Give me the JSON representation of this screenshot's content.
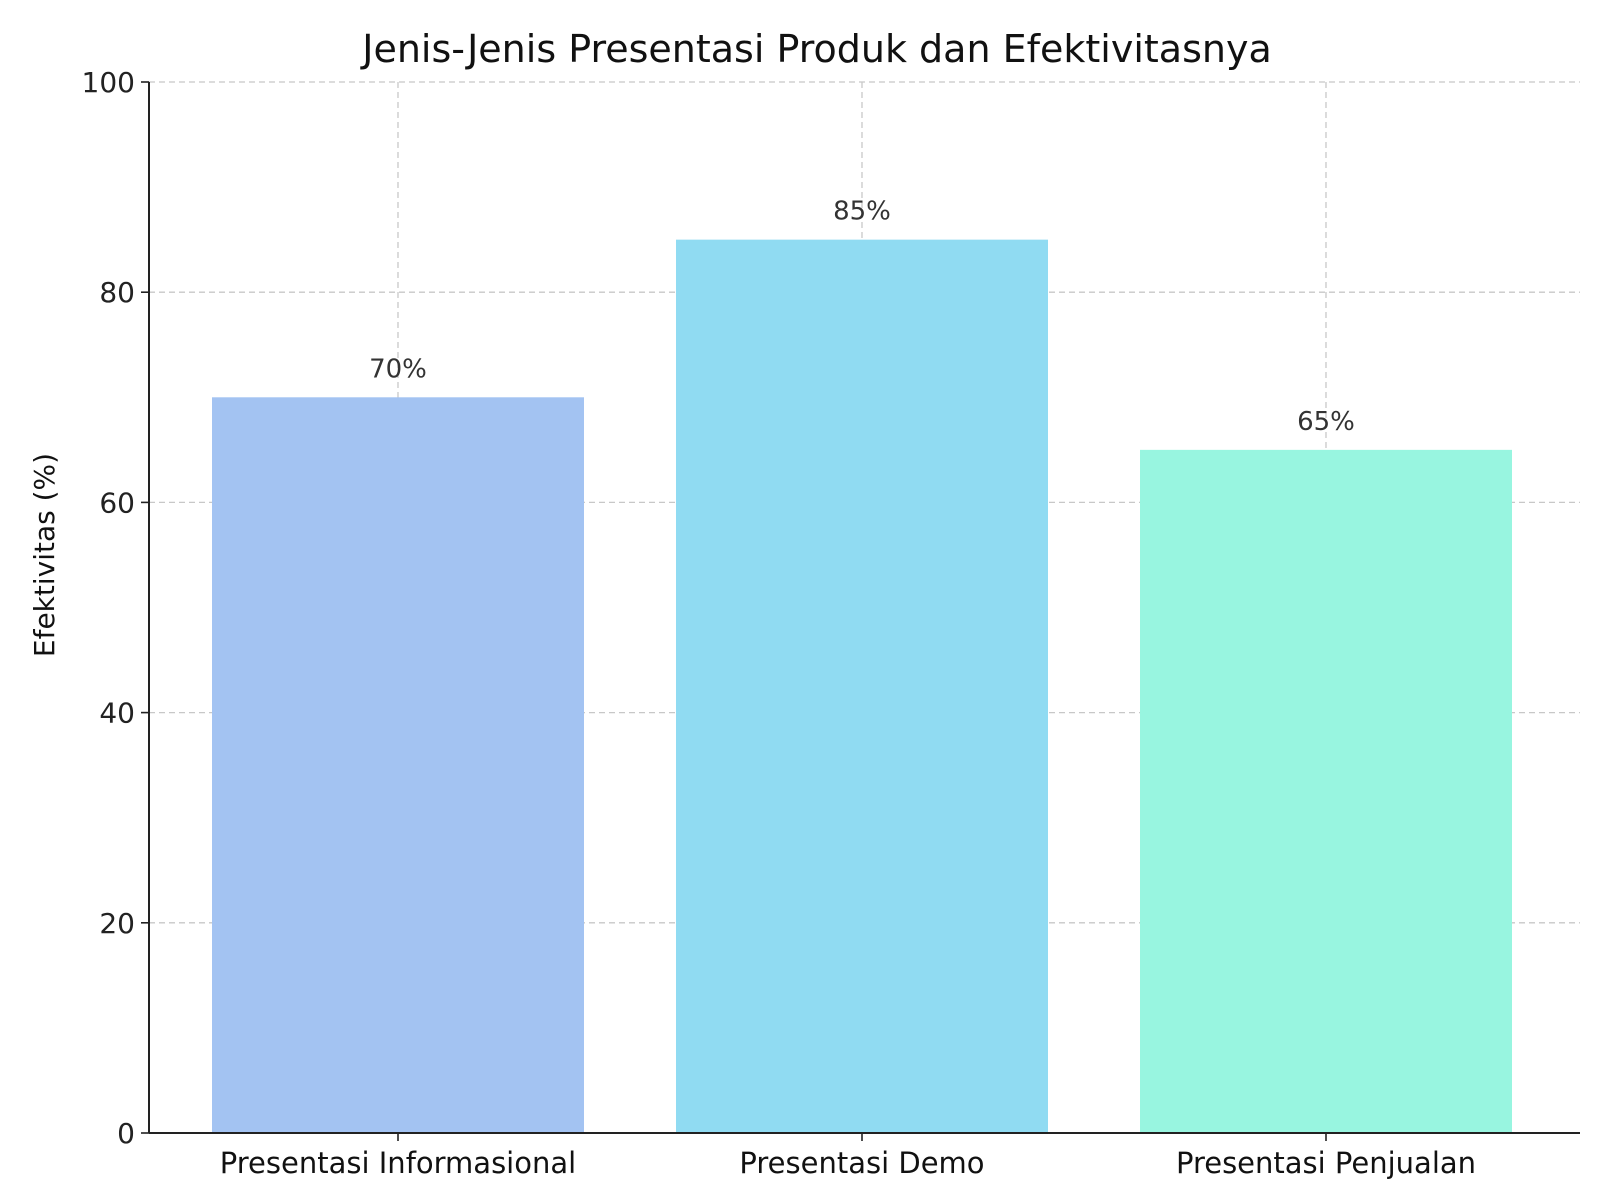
{
  "chart_data": {
    "type": "bar",
    "title": "Jenis-Jenis Presentasi Produk dan Efektivitasnya",
    "xlabel": "",
    "ylabel": "Efektivitas (%)",
    "categories": [
      "Presentasi Informasional",
      "Presentasi Demo",
      "Presentasi Penjualan"
    ],
    "values": [
      70,
      85,
      65
    ],
    "data_labels": [
      "70%",
      "85%",
      "65%"
    ],
    "colors": [
      "#a3c3f2",
      "#90dbf2",
      "#98f5e0"
    ],
    "ylim": [
      0,
      100
    ],
    "yticks": [
      0,
      20,
      40,
      60,
      80,
      100
    ],
    "ytick_labels": [
      "0",
      "20",
      "40",
      "60",
      "80",
      "100"
    ],
    "grid": true,
    "legend": "none"
  }
}
